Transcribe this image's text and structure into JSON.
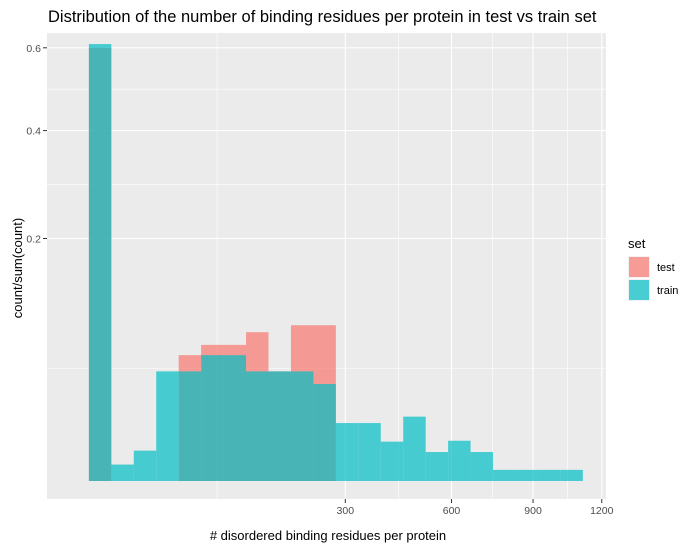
{
  "chart_data": {
    "type": "bar",
    "title": "Distribution of the number of binding residues per protein in test vs train set",
    "xlabel": "# disordered binding residues per protein",
    "ylabel": "count/sum(count)",
    "x_scale": "sqrt",
    "y_scale": "sqrt",
    "xlim": [
      -8,
      1220
    ],
    "ylim": [
      0,
      0.64
    ],
    "x_ticks": [
      300,
      600,
      900,
      1200
    ],
    "x_tick_labels": [
      "300",
      "600",
      "900",
      "1200"
    ],
    "y_ticks": [
      0.2,
      0.4,
      0.6
    ],
    "y_tick_labels": [
      "0.2",
      "0.4",
      "0.6"
    ],
    "grid": true,
    "legend_position": "right",
    "legend_title": "set",
    "bin_edges": [
      0,
      2.3,
      9.2,
      20.7,
      36.8,
      57.5,
      82.8,
      112.7,
      147.2,
      186.3,
      230.0,
      278.3,
      331.2,
      388.7,
      450.8,
      517.5,
      588.8,
      664.7,
      745.2,
      830.3,
      920.0,
      1014.3,
      1113.2
    ],
    "series": [
      {
        "name": "test",
        "color": "#F8766D",
        "values": [
          0.6,
          0,
          0,
          0,
          0.061,
          0.07,
          0.07,
          0.082,
          0.048,
          0.089,
          0.089,
          0,
          0,
          0,
          0,
          0,
          0,
          0,
          0,
          0,
          0,
          0
        ]
      },
      {
        "name": "train",
        "color": "#00BFC4",
        "values": [
          0.61,
          0.0035,
          0.0069,
          0.048,
          0.048,
          0.061,
          0.061,
          0.048,
          0.048,
          0.048,
          0.039,
          0.017,
          0.017,
          0.0097,
          0.02,
          0.0065,
          0.01,
          0.0065,
          0.0025,
          0.0025,
          0.0025,
          0.0025
        ]
      }
    ]
  }
}
